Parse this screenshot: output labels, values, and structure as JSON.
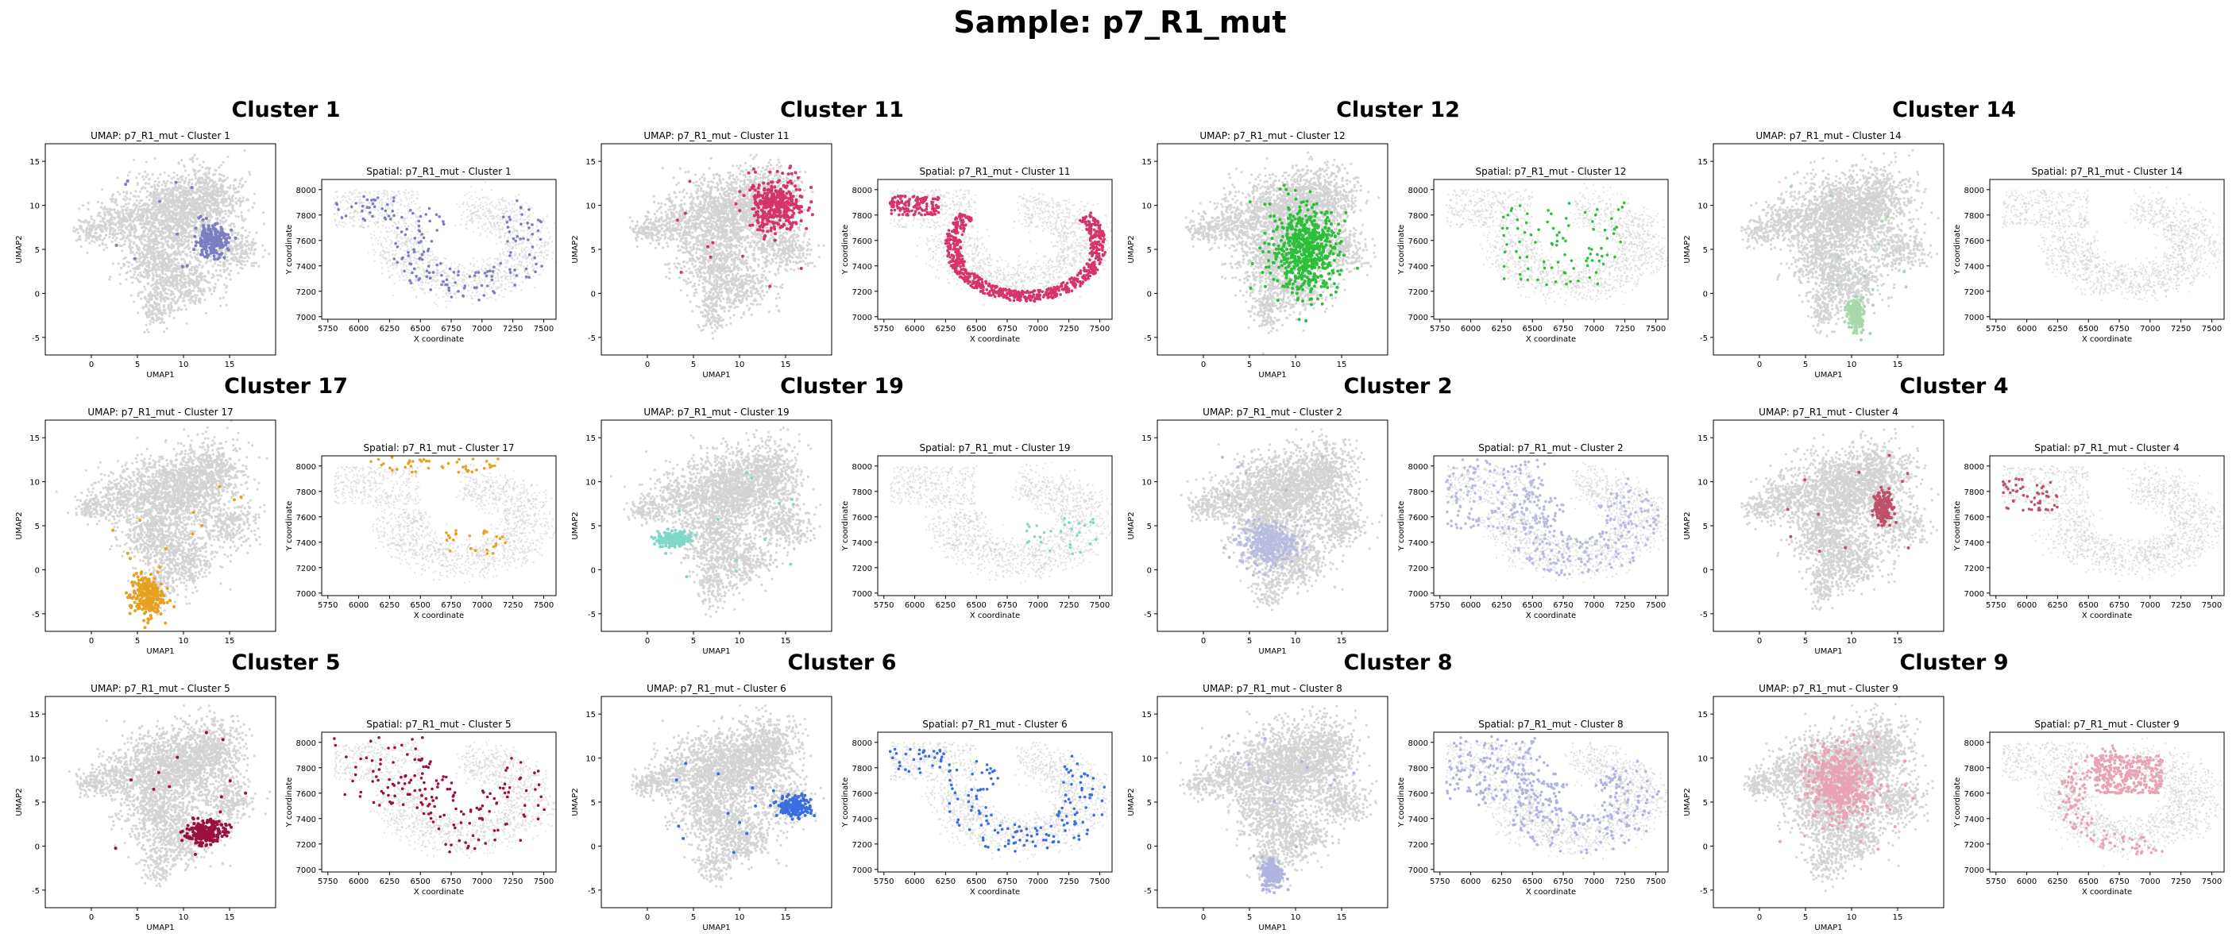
{
  "suptitle": "Sample: p7_R1_mut",
  "layout": {
    "rows": 3,
    "cols": 4
  },
  "chart_data": [
    {
      "type": "scatter",
      "group_title": "Cluster 1",
      "color": "#7b7fc0",
      "umap": {
        "title": "UMAP: p7_R1_mut - Cluster 1",
        "xlabel": "UMAP1",
        "ylabel": "UMAP2",
        "xlim": [
          -5,
          20
        ],
        "ylim": [
          -7,
          17
        ],
        "xticks": [
          0,
          5,
          10,
          15
        ],
        "yticks": [
          -5,
          0,
          5,
          10,
          15
        ],
        "background": "grey",
        "region": {
          "center": [
            13,
            6
          ],
          "spread": [
            1.5,
            1.5
          ]
        }
      },
      "spatial": {
        "title": "Spatial: p7_R1_mut - Cluster 1",
        "xlabel": "X coordinate",
        "ylabel": "Y coordinate",
        "xlim": [
          5700,
          7600
        ],
        "ylim": [
          6980,
          8080
        ],
        "xticks": [
          5750,
          6000,
          6250,
          6500,
          6750,
          7000,
          7250,
          7500
        ],
        "yticks": [
          7000,
          7200,
          7400,
          7600,
          7800,
          8000
        ],
        "background": "grey",
        "pattern": "arc_sparse"
      }
    },
    {
      "type": "scatter",
      "group_title": "Cluster 11",
      "color": "#d6336c",
      "umap": {
        "title": "UMAP: p7_R1_mut - Cluster 11",
        "xlabel": "UMAP1",
        "ylabel": "UMAP2",
        "xlim": [
          -5,
          20
        ],
        "ylim": [
          -7,
          17
        ],
        "xticks": [
          0,
          5,
          10,
          15
        ],
        "yticks": [
          -5,
          0,
          5,
          10,
          15
        ],
        "background": "grey",
        "region": {
          "center": [
            14,
            10
          ],
          "spread": [
            2.5,
            2.5
          ]
        }
      },
      "spatial": {
        "title": "Spatial: p7_R1_mut - Cluster 11",
        "xlabel": "X coordinate",
        "ylabel": "Y coordinate",
        "xlim": [
          5700,
          7600
        ],
        "ylim": [
          6980,
          8080
        ],
        "xticks": [
          5750,
          6000,
          6250,
          6500,
          6750,
          7000,
          7250,
          7500
        ],
        "yticks": [
          7000,
          7200,
          7400,
          7600,
          7800,
          8000
        ],
        "background": "grey",
        "pattern": "arc_dense"
      }
    },
    {
      "type": "scatter",
      "group_title": "Cluster 12",
      "color": "#2dbf3a",
      "umap": {
        "title": "UMAP: p7_R1_mut - Cluster 12",
        "xlabel": "UMAP1",
        "ylabel": "UMAP2",
        "xlim": [
          -5,
          20
        ],
        "ylim": [
          -7,
          17
        ],
        "xticks": [
          0,
          5,
          10,
          15
        ],
        "yticks": [
          -5,
          0,
          5,
          10,
          15
        ],
        "background": "grey",
        "region": {
          "center": [
            11,
            5
          ],
          "spread": [
            3,
            4
          ]
        }
      },
      "spatial": {
        "title": "Spatial: p7_R1_mut - Cluster 12",
        "xlabel": "X coordinate",
        "ylabel": "Y coordinate",
        "xlim": [
          5700,
          7600
        ],
        "ylim": [
          6980,
          8080
        ],
        "xticks": [
          5750,
          6000,
          6250,
          6500,
          6750,
          7000,
          7250,
          7500
        ],
        "yticks": [
          7000,
          7200,
          7400,
          7600,
          7800,
          8000
        ],
        "background": "grey",
        "pattern": "inner_sparse"
      }
    },
    {
      "type": "scatter",
      "group_title": "Cluster 14",
      "color": "#a8d8a8",
      "umap": {
        "title": "UMAP: p7_R1_mut - Cluster 14",
        "xlabel": "UMAP1",
        "ylabel": "UMAP2",
        "xlim": [
          -5,
          20
        ],
        "ylim": [
          -7,
          17
        ],
        "xticks": [
          0,
          5,
          10,
          15
        ],
        "yticks": [
          -5,
          0,
          5,
          10,
          15
        ],
        "background": "grey",
        "region": {
          "center": [
            10.5,
            -2.5
          ],
          "spread": [
            0.8,
            1.5
          ]
        }
      },
      "spatial": {
        "title": "Spatial: p7_R1_mut - Cluster 14",
        "xlabel": "X coordinate",
        "ylabel": "Y coordinate",
        "xlim": [
          5700,
          7600
        ],
        "ylim": [
          6980,
          8080
        ],
        "xticks": [
          5750,
          6000,
          6250,
          6500,
          6750,
          7000,
          7250,
          7500
        ],
        "yticks": [
          7000,
          7200,
          7400,
          7600,
          7800,
          8000
        ],
        "background": "grey",
        "pattern": "none"
      }
    },
    {
      "type": "scatter",
      "group_title": "Cluster 17",
      "color": "#e8a020",
      "umap": {
        "title": "UMAP: p7_R1_mut - Cluster 17",
        "xlabel": "UMAP1",
        "ylabel": "UMAP2",
        "xlim": [
          -5,
          20
        ],
        "ylim": [
          -7,
          17
        ],
        "xticks": [
          0,
          5,
          10,
          15
        ],
        "yticks": [
          -5,
          0,
          5,
          10,
          15
        ],
        "background": "grey",
        "region": {
          "center": [
            6,
            -3
          ],
          "spread": [
            1.5,
            2
          ]
        }
      },
      "spatial": {
        "title": "Spatial: p7_R1_mut - Cluster 17",
        "xlabel": "X coordinate",
        "ylabel": "Y coordinate",
        "xlim": [
          5700,
          7600
        ],
        "ylim": [
          6980,
          8080
        ],
        "xticks": [
          5750,
          6000,
          6250,
          6500,
          6750,
          7000,
          7250,
          7500
        ],
        "yticks": [
          7000,
          7200,
          7400,
          7600,
          7800,
          8000
        ],
        "background": "grey",
        "pattern": "top_band"
      }
    },
    {
      "type": "scatter",
      "group_title": "Cluster 19",
      "color": "#7fd8c8",
      "umap": {
        "title": "UMAP: p7_R1_mut - Cluster 19",
        "xlabel": "UMAP1",
        "ylabel": "UMAP2",
        "xlim": [
          -5,
          20
        ],
        "ylim": [
          -7,
          17
        ],
        "xticks": [
          0,
          5,
          10,
          15
        ],
        "yticks": [
          -5,
          0,
          5,
          10,
          15
        ],
        "background": "grey",
        "region": {
          "center": [
            3,
            3.5
          ],
          "spread": [
            1.5,
            0.8
          ]
        }
      },
      "spatial": {
        "title": "Spatial: p7_R1_mut - Cluster 19",
        "xlabel": "X coordinate",
        "ylabel": "Y coordinate",
        "xlim": [
          5700,
          7600
        ],
        "ylim": [
          6980,
          8080
        ],
        "xticks": [
          5750,
          6000,
          6250,
          6500,
          6750,
          7000,
          7250,
          7500
        ],
        "yticks": [
          7000,
          7200,
          7400,
          7600,
          7800,
          8000
        ],
        "background": "grey",
        "pattern": "right_few"
      }
    },
    {
      "type": "scatter",
      "group_title": "Cluster 2",
      "color": "#b8bce0",
      "umap": {
        "title": "UMAP: p7_R1_mut - Cluster 2",
        "xlabel": "UMAP1",
        "ylabel": "UMAP2",
        "xlim": [
          -5,
          20
        ],
        "ylim": [
          -7,
          17
        ],
        "xticks": [
          0,
          5,
          10,
          15
        ],
        "yticks": [
          -5,
          0,
          5,
          10,
          15
        ],
        "background": "grey",
        "region": {
          "center": [
            7,
            3
          ],
          "spread": [
            2.5,
            2
          ]
        }
      },
      "spatial": {
        "title": "Spatial: p7_R1_mut - Cluster 2",
        "xlabel": "X coordinate",
        "ylabel": "Y coordinate",
        "xlim": [
          5700,
          7600
        ],
        "ylim": [
          6980,
          8080
        ],
        "xticks": [
          5750,
          6000,
          6250,
          6500,
          6750,
          7000,
          7250,
          7500
        ],
        "yticks": [
          7000,
          7200,
          7400,
          7600,
          7800,
          8000
        ],
        "background": "grey",
        "pattern": "everywhere"
      }
    },
    {
      "type": "scatter",
      "group_title": "Cluster 4",
      "color": "#c0506a",
      "umap": {
        "title": "UMAP: p7_R1_mut - Cluster 4",
        "xlabel": "UMAP1",
        "ylabel": "UMAP2",
        "xlim": [
          -5,
          20
        ],
        "ylim": [
          -7,
          17
        ],
        "xticks": [
          0,
          5,
          10,
          15
        ],
        "yticks": [
          -5,
          0,
          5,
          10,
          15
        ],
        "background": "grey",
        "region": {
          "center": [
            13.5,
            7
          ],
          "spread": [
            0.8,
            1.5
          ]
        }
      },
      "spatial": {
        "title": "Spatial: p7_R1_mut - Cluster 4",
        "xlabel": "X coordinate",
        "ylabel": "Y coordinate",
        "xlim": [
          5700,
          7600
        ],
        "ylim": [
          6980,
          8080
        ],
        "xticks": [
          5750,
          6000,
          6250,
          6500,
          6750,
          7000,
          7250,
          7500
        ],
        "yticks": [
          7000,
          7200,
          7400,
          7600,
          7800,
          8000
        ],
        "background": "grey",
        "pattern": "topleft"
      }
    },
    {
      "type": "scatter",
      "group_title": "Cluster 5",
      "color": "#9c1040",
      "umap": {
        "title": "UMAP: p7_R1_mut - Cluster 5",
        "xlabel": "UMAP1",
        "ylabel": "UMAP2",
        "xlim": [
          -5,
          20
        ],
        "ylim": [
          -7,
          17
        ],
        "xticks": [
          0,
          5,
          10,
          15
        ],
        "yticks": [
          -5,
          0,
          5,
          10,
          15
        ],
        "background": "grey",
        "region": {
          "center": [
            12.5,
            1.5
          ],
          "spread": [
            1.8,
            1.2
          ]
        }
      },
      "spatial": {
        "title": "Spatial: p7_R1_mut - Cluster 5",
        "xlabel": "X coordinate",
        "ylabel": "Y coordinate",
        "xlim": [
          5700,
          7600
        ],
        "ylim": [
          6980,
          8080
        ],
        "xticks": [
          5750,
          6000,
          6250,
          6500,
          6750,
          7000,
          7250,
          7500
        ],
        "yticks": [
          7000,
          7200,
          7400,
          7600,
          7800,
          8000
        ],
        "background": "grey",
        "pattern": "everywhere_sparse"
      }
    },
    {
      "type": "scatter",
      "group_title": "Cluster 6",
      "color": "#3a6ee0",
      "umap": {
        "title": "UMAP: p7_R1_mut - Cluster 6",
        "xlabel": "UMAP1",
        "ylabel": "UMAP2",
        "xlim": [
          -5,
          20
        ],
        "ylim": [
          -7,
          17
        ],
        "xticks": [
          0,
          5,
          10,
          15
        ],
        "yticks": [
          -5,
          0,
          5,
          10,
          15
        ],
        "background": "grey",
        "region": {
          "center": [
            16,
            4.5
          ],
          "spread": [
            1.5,
            1
          ]
        }
      },
      "spatial": {
        "title": "Spatial: p7_R1_mut - Cluster 6",
        "xlabel": "X coordinate",
        "ylabel": "Y coordinate",
        "xlim": [
          5700,
          7600
        ],
        "ylim": [
          6980,
          8080
        ],
        "xticks": [
          5750,
          6000,
          6250,
          6500,
          6750,
          7000,
          7250,
          7500
        ],
        "yticks": [
          7000,
          7200,
          7400,
          7600,
          7800,
          8000
        ],
        "background": "grey",
        "pattern": "arc_sparse"
      }
    },
    {
      "type": "scatter",
      "group_title": "Cluster 8",
      "color": "#b0b4e0",
      "umap": {
        "title": "UMAP: p7_R1_mut - Cluster 8",
        "xlabel": "UMAP1",
        "ylabel": "UMAP2",
        "xlim": [
          -5,
          20
        ],
        "ylim": [
          -7,
          17
        ],
        "xticks": [
          0,
          5,
          10,
          15
        ],
        "yticks": [
          -5,
          0,
          5,
          10,
          15
        ],
        "background": "grey",
        "region": {
          "center": [
            7.5,
            -3
          ],
          "spread": [
            1,
            1.5
          ]
        }
      },
      "spatial": {
        "title": "Spatial: p7_R1_mut - Cluster 8",
        "xlabel": "X coordinate",
        "ylabel": "Y coordinate",
        "xlim": [
          5700,
          7600
        ],
        "ylim": [
          6980,
          8080
        ],
        "xticks": [
          5750,
          6000,
          6250,
          6500,
          6750,
          7000,
          7250,
          7500
        ],
        "yticks": [
          7000,
          7200,
          7400,
          7600,
          7800,
          8000
        ],
        "background": "grey",
        "pattern": "everywhere"
      }
    },
    {
      "type": "scatter",
      "group_title": "Cluster 9",
      "color": "#e8a4b4",
      "umap": {
        "title": "UMAP: p7_R1_mut - Cluster 9",
        "xlabel": "UMAP1",
        "ylabel": "UMAP2",
        "xlim": [
          -5,
          20
        ],
        "ylim": [
          -7,
          17
        ],
        "xticks": [
          0,
          5,
          10,
          15
        ],
        "yticks": [
          -5,
          0,
          5,
          10,
          15
        ],
        "background": "grey",
        "region": {
          "center": [
            9,
            7
          ],
          "spread": [
            3,
            3.5
          ]
        }
      },
      "spatial": {
        "title": "Spatial: p7_R1_mut - Cluster 9",
        "xlabel": "X coordinate",
        "ylabel": "Y coordinate",
        "xlim": [
          5700,
          7600
        ],
        "ylim": [
          6980,
          8080
        ],
        "xticks": [
          5750,
          6000,
          6250,
          6500,
          6750,
          7000,
          7250,
          7500
        ],
        "yticks": [
          7000,
          7200,
          7400,
          7600,
          7800,
          8000
        ],
        "background": "grey",
        "pattern": "inner_dense"
      }
    }
  ]
}
